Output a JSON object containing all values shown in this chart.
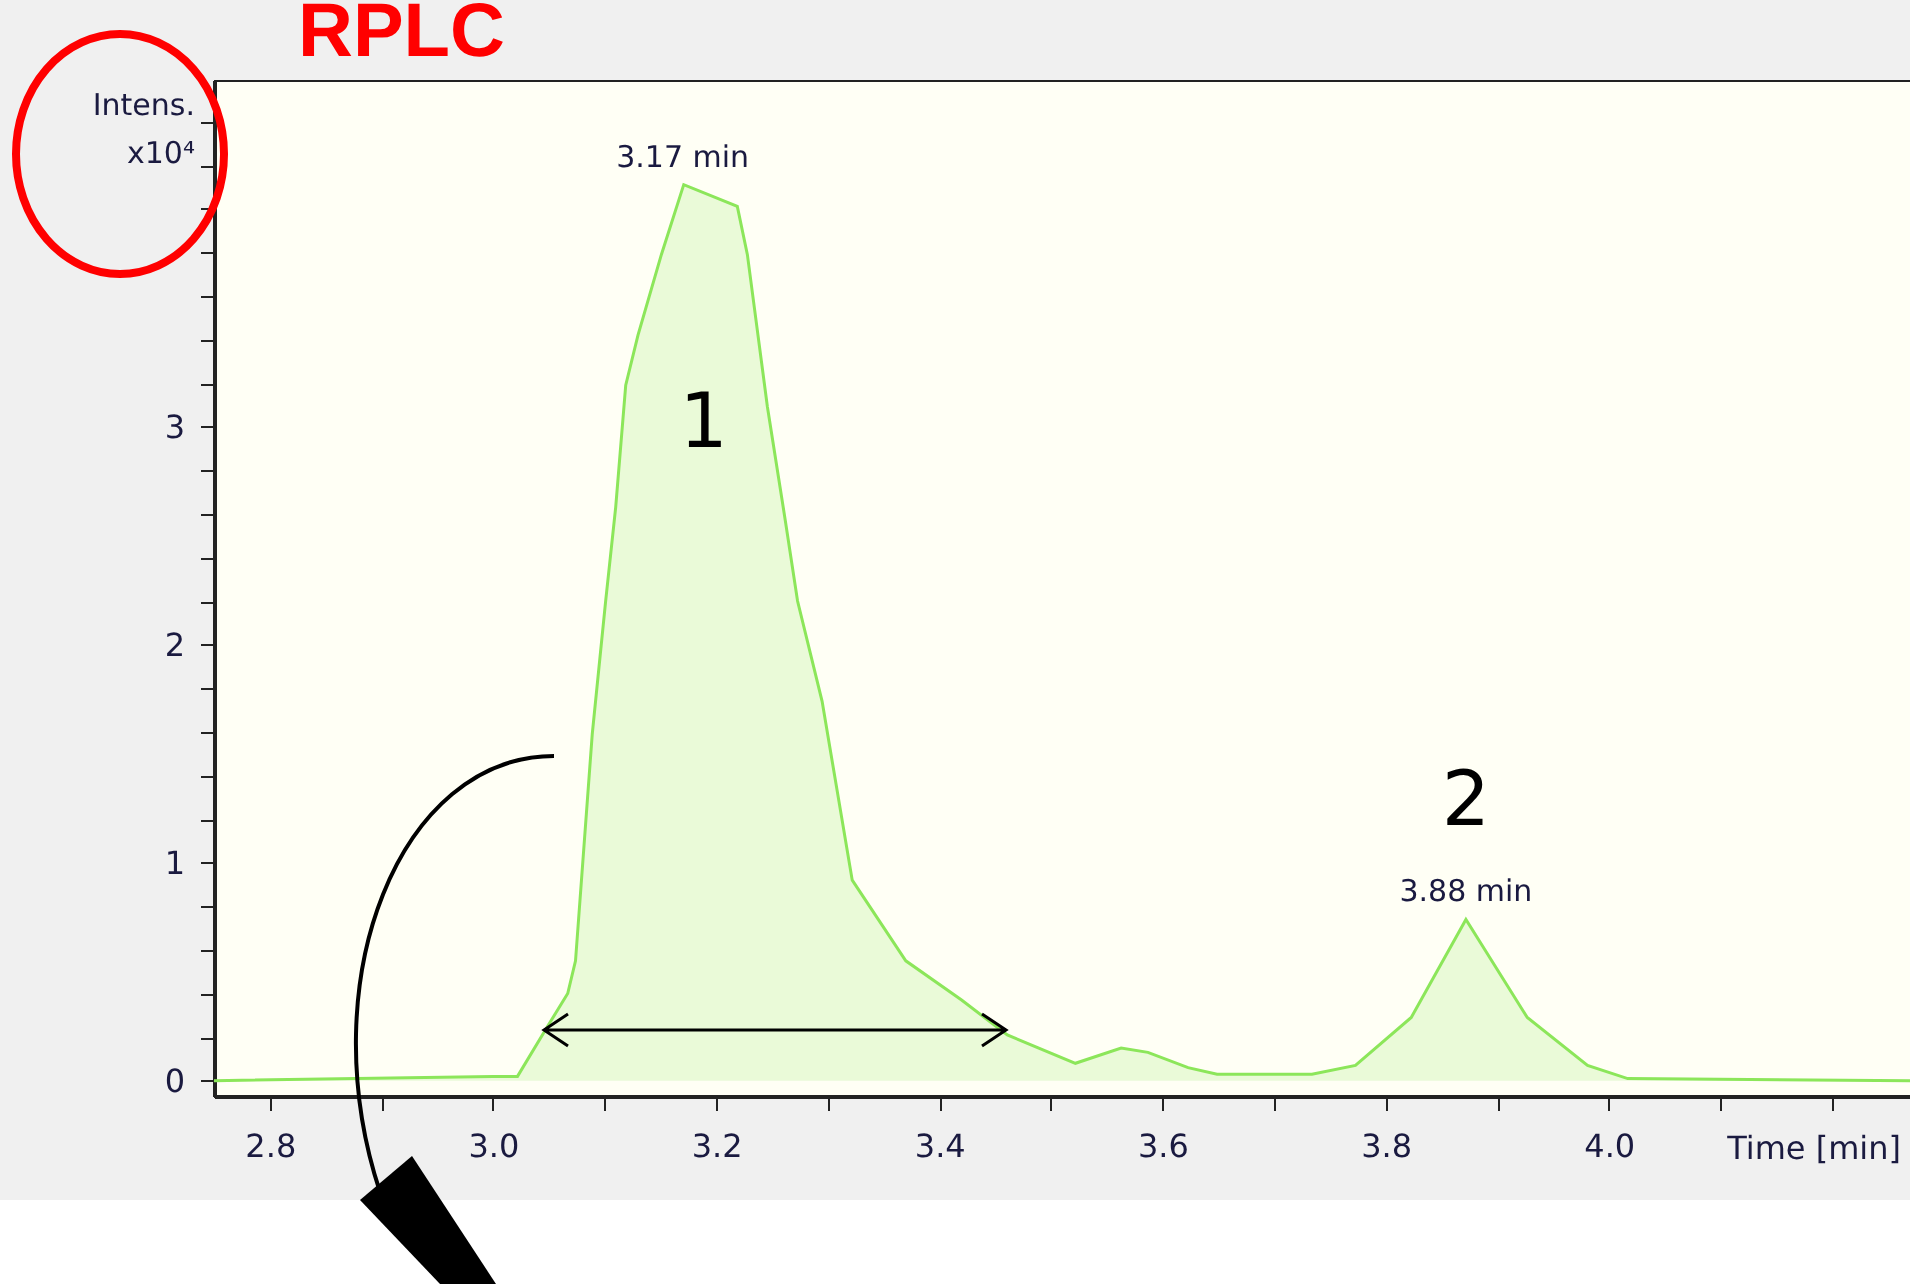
{
  "chart_data": {
    "type": "area",
    "title": "RPLC",
    "xlabel": "Time [min]",
    "ylabel": "Intens. x10⁴",
    "series": [
      {
        "color": "#8ce65a",
        "x": [
          2.75,
          3.0,
          3.022,
          3.049,
          3.067,
          3.074,
          3.089,
          3.101,
          3.11,
          3.119,
          3.13,
          3.151,
          3.171,
          3.219,
          3.228,
          3.246,
          3.262,
          3.273,
          3.295,
          3.322,
          3.37,
          3.42,
          3.461,
          3.522,
          3.563,
          3.587,
          3.623,
          3.649,
          3.734,
          3.773,
          3.823,
          3.872,
          3.927,
          3.981,
          4.017,
          4.27
        ],
        "values": [
          0,
          0.02,
          0.02,
          0.25,
          0.4,
          0.55,
          1.59,
          2.2,
          2.63,
          3.19,
          3.42,
          3.79,
          4.11,
          4.01,
          3.79,
          3.09,
          2.57,
          2.2,
          1.74,
          0.92,
          0.55,
          0.37,
          0.21,
          0.08,
          0.15,
          0.13,
          0.06,
          0.03,
          0.03,
          0.07,
          0.29,
          0.74,
          0.29,
          0.07,
          0.01,
          0
        ]
      }
    ],
    "xlim": [
      2.75,
      4.27
    ],
    "xticks": [
      2.8,
      {
        "value": 2.9,
        "label": null
      },
      "3.0",
      {
        "value": 3.1,
        "label": null
      },
      3.2,
      {
        "value": 3.3,
        "label": null
      },
      3.4,
      {
        "value": 3.5,
        "label": null
      },
      3.6,
      {
        "value": 3.7,
        "label": null
      },
      3.8,
      {
        "value": 3.9,
        "label": null
      },
      {
        "value": 4,
        "label": "4.0"
      },
      {
        "value": 4.1,
        "label": null
      },
      {
        "value": 4.2,
        "label": null
      }
    ],
    "ylim": [
      -0.07,
      4.59
    ],
    "yticks": [
      0,
      {
        "value": 0.2,
        "label": null
      },
      {
        "value": 0.4,
        "label": null
      },
      {
        "value": 0.6,
        "label": null
      },
      {
        "value": 0.8,
        "label": null
      },
      1,
      {
        "value": 1.2,
        "label": null
      },
      {
        "value": 1.4,
        "label": null
      },
      {
        "value": 1.6,
        "label": null
      },
      {
        "value": 1.8,
        "label": null
      },
      2,
      {
        "value": 2.2,
        "label": null
      },
      {
        "value": 2.4,
        "label": null
      },
      {
        "value": 2.6,
        "label": null
      },
      {
        "value": 2.8,
        "label": null
      },
      3,
      {
        "value": 3.2,
        "label": null
      },
      {
        "value": 3.4,
        "label": null
      },
      {
        "value": 3.6,
        "label": null
      },
      {
        "value": 3.8,
        "label": null
      },
      {
        "value": 4,
        "label": null
      },
      {
        "value": 4.2,
        "label": null
      },
      {
        "value": 4.4,
        "label": null
      }
    ],
    "annotations": [
      {
        "text": "1",
        "x": 3.171,
        "y": 4.11
      },
      {
        "text": "3.17 min",
        "x": 3.17,
        "y": 4.11
      },
      {
        "text": "2",
        "x": 3.872,
        "y": 0.74
      },
      {
        "text": "3.88 min",
        "x": 3.872,
        "y": 0.74
      }
    ],
    "grid": false,
    "legend": false
  }
}
